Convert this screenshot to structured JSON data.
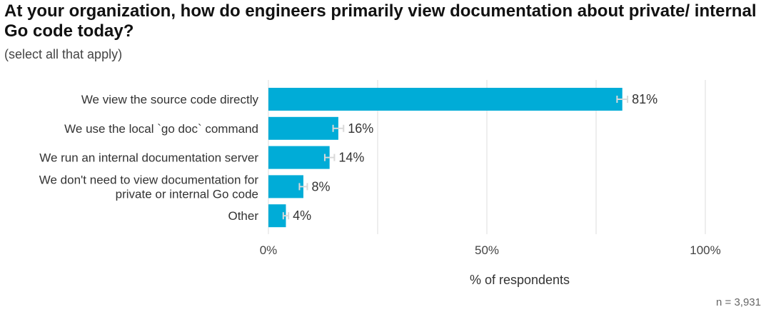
{
  "chart_data": {
    "type": "bar",
    "orientation": "horizontal",
    "title": "At your organization, how do engineers primarily view documentation about private/ internal Go code today?",
    "subtitle": "(select all that apply)",
    "categories": [
      [
        "We view the source code directly"
      ],
      [
        "We use the local `go doc` command"
      ],
      [
        "We run an internal documentation server"
      ],
      [
        "We don't need to view documentation for",
        "private or internal Go code"
      ],
      [
        "Other"
      ]
    ],
    "values": [
      81,
      16,
      14,
      8,
      4
    ],
    "value_labels": [
      "81%",
      "16%",
      "14%",
      "8%",
      "4%"
    ],
    "error_bar_halfwidth": [
      1.2,
      1.2,
      1.1,
      0.9,
      0.6
    ],
    "xlim": [
      0,
      100
    ],
    "xticks": [
      0,
      50,
      100
    ],
    "xtick_labels": [
      "0%",
      "50%",
      "100%"
    ],
    "xlabel": "% of respondents",
    "grid": true,
    "bar_color": "#00ACD7",
    "error_bar_color": "#d9d9d9",
    "gridline_color": "#e2e2e2"
  },
  "footnote": "n =  3,931"
}
